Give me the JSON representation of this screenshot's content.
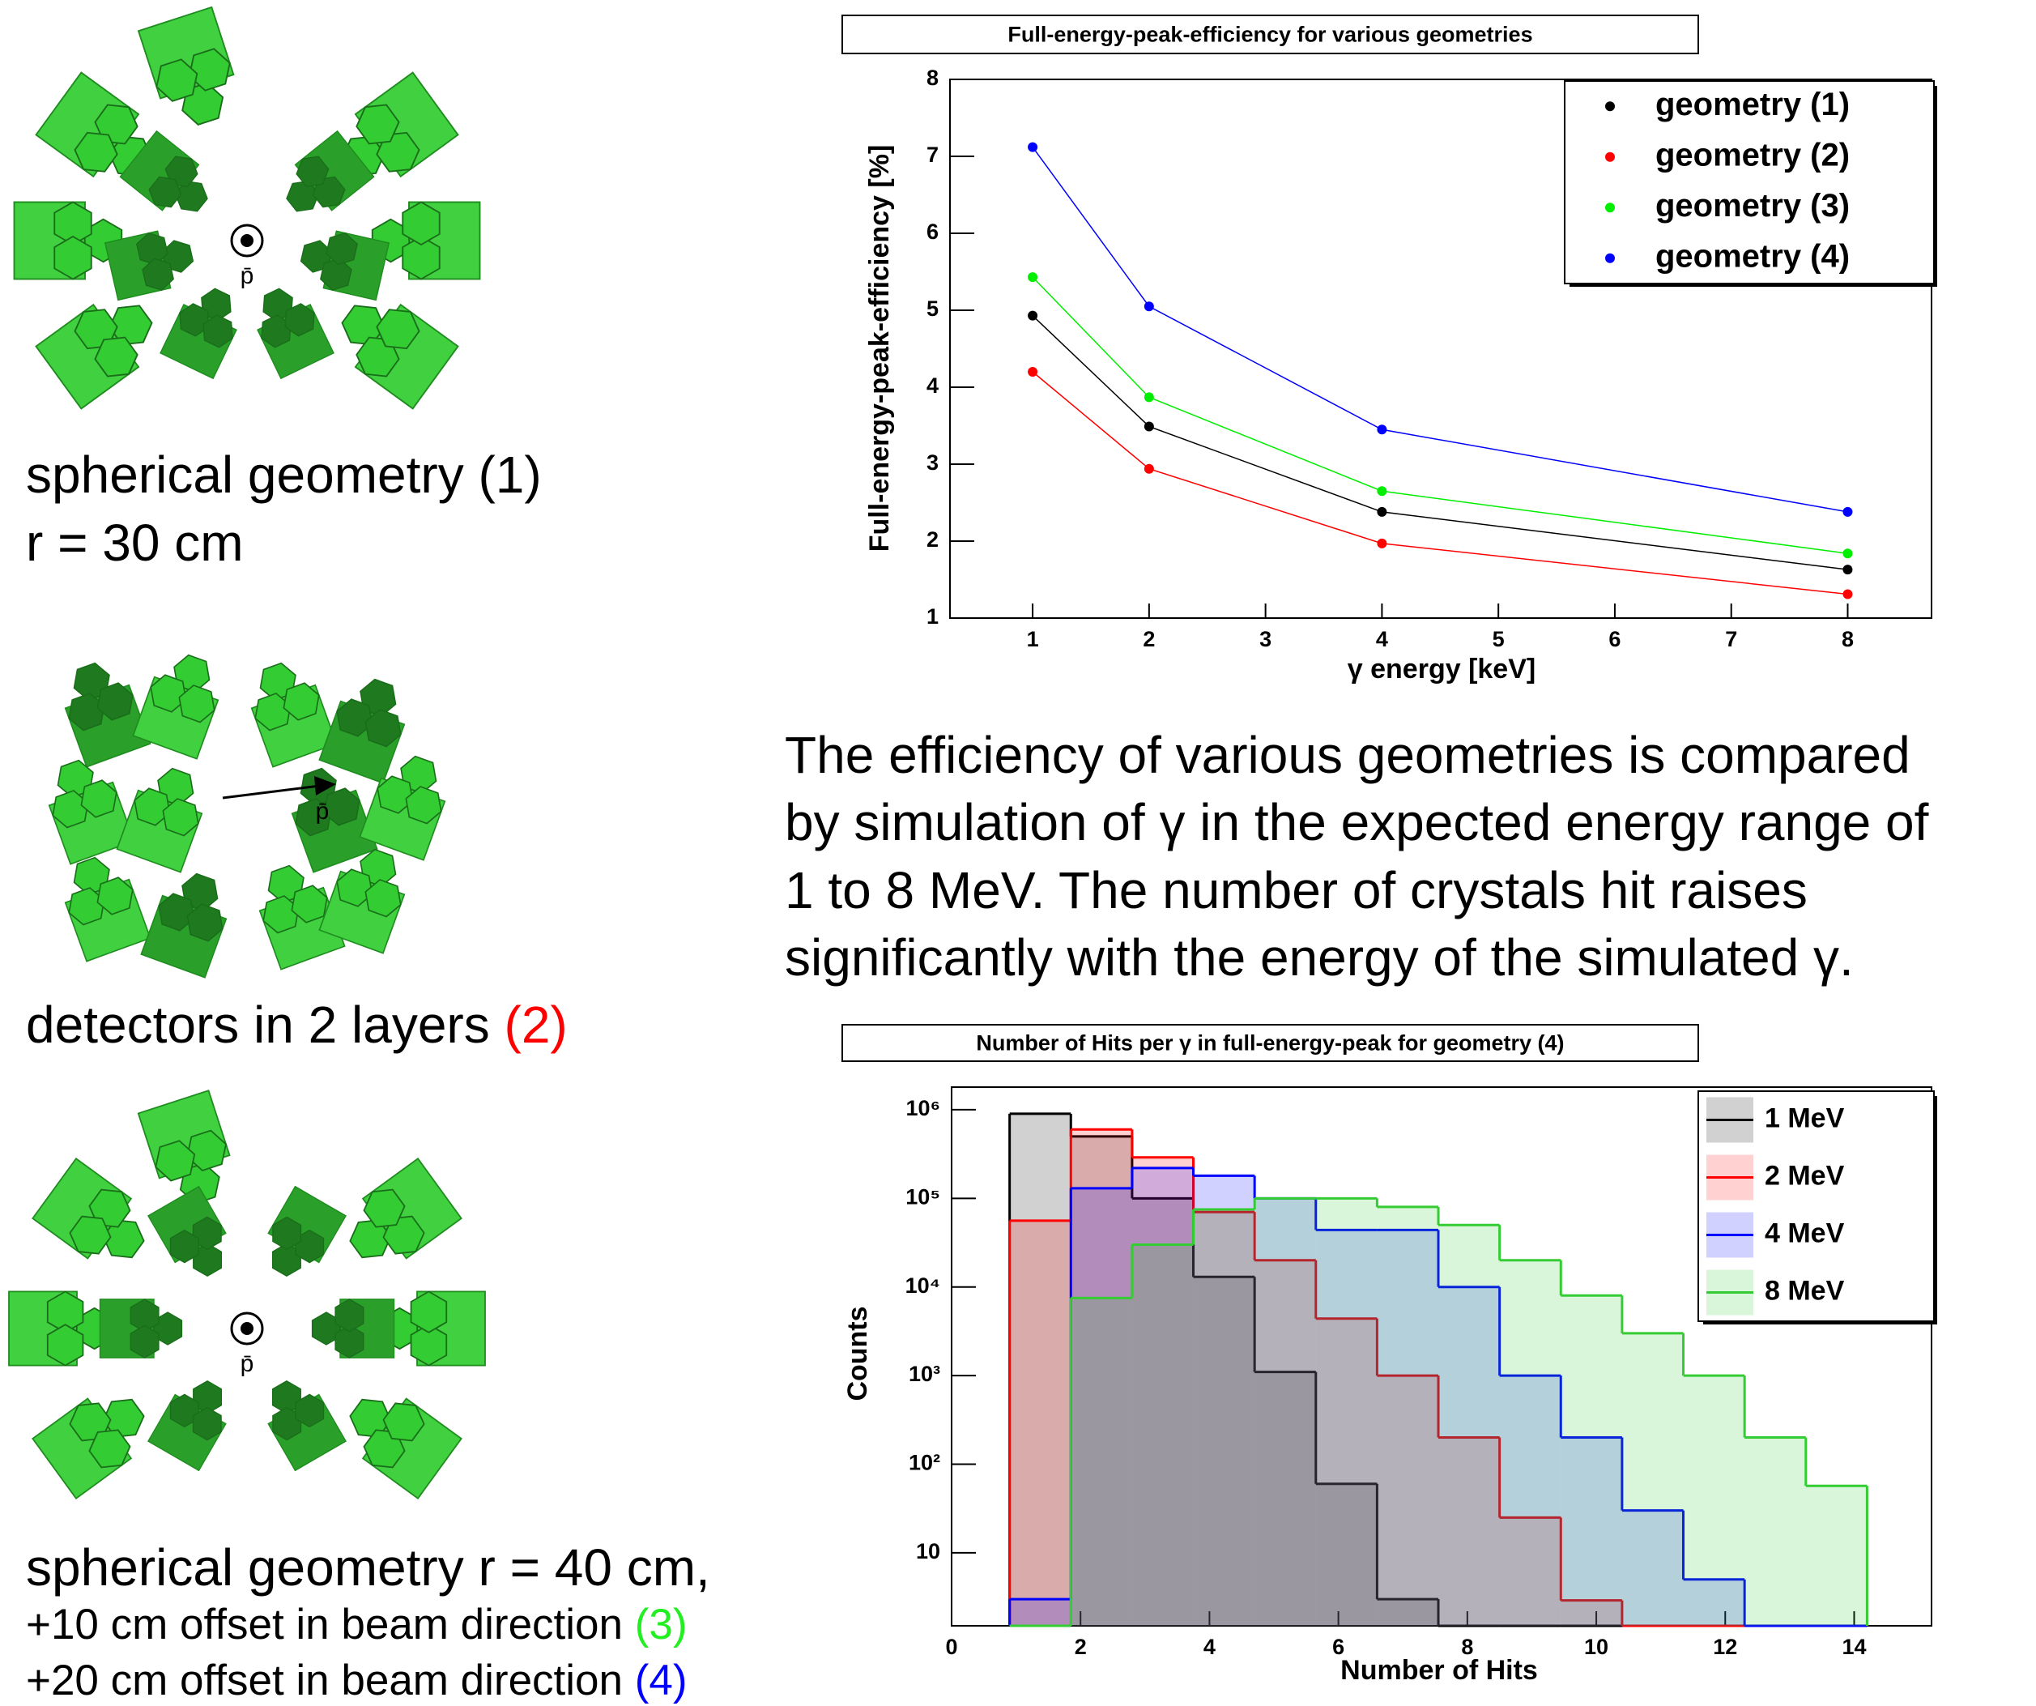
{
  "figures": [
    {
      "beam_label": "p̄",
      "caption": [
        [
          {
            "text": "spherical geometry (1)"
          }
        ],
        [
          {
            "text": "r = 30 cm"
          }
        ]
      ]
    },
    {
      "beam_label": "p̄",
      "caption": [
        [
          {
            "text": "detectors in 2 layers "
          },
          {
            "text": "(2)",
            "color": "#ff0000"
          }
        ]
      ]
    },
    {
      "beam_label": "p̄",
      "caption": [
        [
          {
            "text": "spherical geometry r = 40 cm,"
          }
        ],
        [
          {
            "text": "+10 cm offset in beam direction "
          },
          {
            "text": "(3)",
            "color": "#22ee22"
          }
        ],
        [
          {
            "text": "+20 cm offset in beam direction "
          },
          {
            "text": "(4)",
            "color": "#0000ff"
          }
        ]
      ]
    }
  ],
  "paragraph": [
    "The efficiency of various geometries is compared",
    "by simulation of γ in the expected energy range of",
    "1 to 8 MeV. The number of crystals hit raises",
    "significantly with the energy of the simulated γ."
  ],
  "chart_data": [
    {
      "type": "line",
      "title": "Full-energy-peak-efficiency for various geometries",
      "x_label": "γ energy [keV]",
      "y_label": "Full-energy-peak-efficiency [%]",
      "x": [
        1,
        2,
        4,
        8
      ],
      "series": [
        {
          "name": "geometry (1)",
          "color": "#000000",
          "values": [
            4.93,
            3.49,
            2.38,
            1.63
          ]
        },
        {
          "name": "geometry (2)",
          "color": "#ff0000",
          "values": [
            4.2,
            2.94,
            1.97,
            1.31
          ]
        },
        {
          "name": "geometry (3)",
          "color": "#00ee00",
          "values": [
            5.43,
            3.87,
            2.65,
            1.84
          ]
        },
        {
          "name": "geometry (4)",
          "color": "#0000ff",
          "values": [
            7.12,
            5.05,
            3.45,
            2.38
          ]
        }
      ],
      "xlim": [
        0.29,
        8.72
      ],
      "ylim": [
        1,
        8
      ],
      "xticks": [
        1,
        2,
        3,
        4,
        5,
        6,
        7,
        8
      ],
      "yticks": [
        1,
        2,
        3,
        4,
        5,
        6,
        7,
        8
      ],
      "grid": false,
      "legend": "top-right"
    },
    {
      "type": "histogram",
      "title": "Number of Hits per γ in full-energy-peak for geometry (4)",
      "x_label": "Number of Hits",
      "y_label": "Counts",
      "bins": [
        0.9,
        1.85,
        2.8,
        3.75,
        4.7,
        5.65,
        6.6,
        7.55,
        8.5,
        9.45,
        10.4,
        11.35,
        12.3,
        13.25,
        14.2
      ],
      "series": [
        {
          "name": "1 MeV",
          "color": "#000000",
          "values": [
            900000,
            500000,
            100000,
            13000,
            1100,
            60,
            3,
            0,
            0,
            0,
            0,
            0,
            0,
            0
          ]
        },
        {
          "name": "2 MeV",
          "color": "#ff0000",
          "values": [
            56000,
            600000,
            290000,
            70000,
            20000,
            4400,
            1000,
            200,
            25,
            2.9,
            0,
            0,
            0,
            0
          ]
        },
        {
          "name": "4 MeV",
          "color": "#0000ff",
          "values": [
            3,
            130000,
            220000,
            180000,
            100000,
            44000,
            44000,
            10000,
            1000,
            200,
            30,
            5,
            0,
            0
          ]
        },
        {
          "name": "8 MeV",
          "color": "#33cc33",
          "values": [
            0,
            7500,
            30000,
            75000,
            100000,
            100000,
            80000,
            50000,
            20000,
            8000,
            3000,
            1000,
            200,
            57
          ]
        }
      ],
      "xlim": [
        0,
        15.2
      ],
      "ylim": [
        1.5,
        1800000
      ],
      "log_y": true,
      "xticks": [
        0,
        2,
        4,
        6,
        8,
        10,
        12,
        14
      ],
      "yticks": [
        10,
        {
          "value": 100,
          "label": "10²"
        },
        {
          "value": 1000,
          "label": "10³"
        },
        {
          "value": 10000,
          "label": "10⁴"
        },
        {
          "value": 100000,
          "label": "10⁵"
        },
        {
          "value": 1000000,
          "label": "10⁶"
        }
      ],
      "grid": false,
      "legend": "top-right"
    }
  ]
}
